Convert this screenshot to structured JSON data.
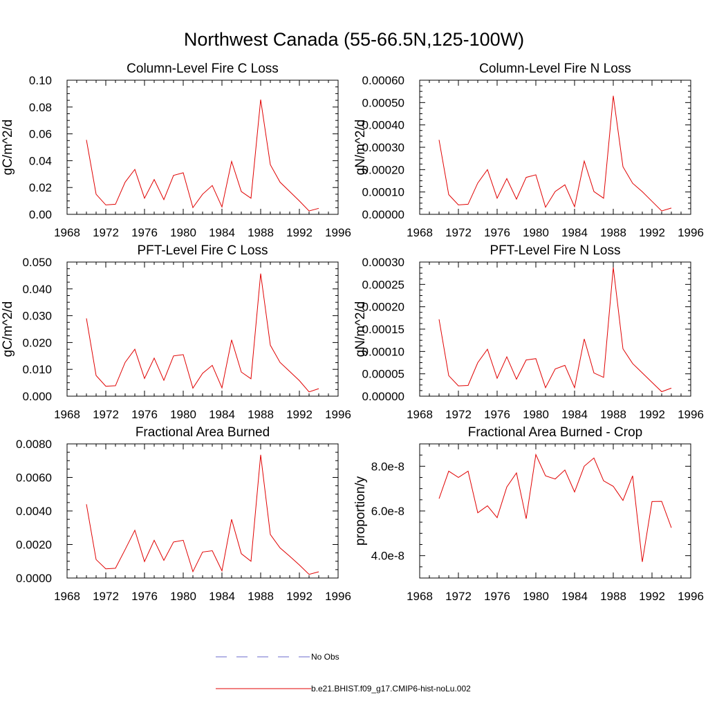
{
  "figure": {
    "title": "Northwest Canada (55-66.5N,125-100W)",
    "legend": [
      {
        "label": "No Obs",
        "color": "#6a6acd",
        "style": "dashed"
      },
      {
        "label": "b.e21.BHIST.f09_g17.CMIP6-hist-noLu.002",
        "color": "#e00000",
        "style": "solid"
      }
    ]
  },
  "chart_data": [
    {
      "type": "line",
      "title": "Column-Level Fire C Loss",
      "ylabel": "gC/m^2/d",
      "xlim": [
        1968,
        1996
      ],
      "ylim": [
        0,
        0.1
      ],
      "x_ticks": [
        "1968",
        "1972",
        "1976",
        "1980",
        "1984",
        "1988",
        "1992",
        "1996"
      ],
      "y_ticks": [
        "0.00",
        "0.02",
        "0.04",
        "0.06",
        "0.08",
        "0.10"
      ],
      "y_tick_values": [
        0,
        0.02,
        0.04,
        0.06,
        0.08,
        0.1
      ],
      "series": [
        {
          "color": "#e00000",
          "x": [
            1970,
            1971,
            1972,
            1973,
            1974,
            1975,
            1976,
            1977,
            1978,
            1979,
            1980,
            1981,
            1982,
            1983,
            1984,
            1985,
            1986,
            1987,
            1988,
            1989,
            1990,
            1991,
            1992,
            1993,
            1994
          ],
          "values": [
            0.0555,
            0.015,
            0.007,
            0.0075,
            0.024,
            0.0335,
            0.012,
            0.026,
            0.011,
            0.029,
            0.031,
            0.005,
            0.015,
            0.0215,
            0.0055,
            0.0395,
            0.017,
            0.012,
            0.0855,
            0.037,
            0.024,
            0.017,
            0.01,
            0.0025,
            0.0045
          ]
        }
      ]
    },
    {
      "type": "line",
      "title": "Column-Level Fire N Loss",
      "ylabel": "gN/m^2/d",
      "xlim": [
        1968,
        1996
      ],
      "ylim": [
        0,
        0.0006
      ],
      "x_ticks": [
        "1968",
        "1972",
        "1976",
        "1980",
        "1984",
        "1988",
        "1992",
        "1996"
      ],
      "y_ticks": [
        "0.00000",
        "0.00010",
        "0.00020",
        "0.00030",
        "0.00040",
        "0.00050",
        "0.00060"
      ],
      "y_tick_values": [
        0,
        0.0001,
        0.0002,
        0.0003,
        0.0004,
        0.0005,
        0.0006
      ],
      "series": [
        {
          "color": "#e00000",
          "x": [
            1970,
            1971,
            1972,
            1973,
            1974,
            1975,
            1976,
            1977,
            1978,
            1979,
            1980,
            1981,
            1982,
            1983,
            1984,
            1985,
            1986,
            1987,
            1988,
            1989,
            1990,
            1991,
            1992,
            1993,
            1994
          ],
          "values": [
            0.000333,
            8.8e-05,
            4.2e-05,
            4.5e-05,
            0.00014,
            0.0002,
            7.2e-05,
            0.00016,
            6.8e-05,
            0.000165,
            0.000177,
            3.2e-05,
            0.000102,
            0.000132,
            3.4e-05,
            0.000238,
            0.000102,
            7.2e-05,
            0.00053,
            0.000213,
            0.000139,
            0.000101,
            5.8e-05,
            1.5e-05,
            2.8e-05
          ]
        }
      ]
    },
    {
      "type": "line",
      "title": "PFT-Level Fire C Loss",
      "ylabel": "gC/m^2/d",
      "xlim": [
        1968,
        1996
      ],
      "ylim": [
        0,
        0.05
      ],
      "x_ticks": [
        "1968",
        "1972",
        "1976",
        "1980",
        "1984",
        "1988",
        "1992",
        "1996"
      ],
      "y_ticks": [
        "0.000",
        "0.010",
        "0.020",
        "0.030",
        "0.040",
        "0.050"
      ],
      "y_tick_values": [
        0,
        0.01,
        0.02,
        0.03,
        0.04,
        0.05
      ],
      "series": [
        {
          "color": "#e00000",
          "x": [
            1970,
            1971,
            1972,
            1973,
            1974,
            1975,
            1976,
            1977,
            1978,
            1979,
            1980,
            1981,
            1982,
            1983,
            1984,
            1985,
            1986,
            1987,
            1988,
            1989,
            1990,
            1991,
            1992,
            1993,
            1994
          ],
          "values": [
            0.029,
            0.0077,
            0.0037,
            0.0039,
            0.0126,
            0.0175,
            0.0066,
            0.0142,
            0.0059,
            0.015,
            0.0155,
            0.003,
            0.0085,
            0.0115,
            0.0031,
            0.021,
            0.009,
            0.0065,
            0.0457,
            0.019,
            0.0126,
            0.0092,
            0.0058,
            0.0016,
            0.0028
          ]
        }
      ]
    },
    {
      "type": "line",
      "title": "PFT-Level Fire N Loss",
      "ylabel": "gN/m^2/d",
      "xlim": [
        1968,
        1996
      ],
      "ylim": [
        0,
        0.0003
      ],
      "x_ticks": [
        "1968",
        "1972",
        "1976",
        "1980",
        "1984",
        "1988",
        "1992",
        "1996"
      ],
      "y_ticks": [
        "0.00000",
        "0.00005",
        "0.00010",
        "0.00015",
        "0.00020",
        "0.00025",
        "0.00030"
      ],
      "y_tick_values": [
        0,
        5e-05,
        0.0001,
        0.00015,
        0.0002,
        0.00025,
        0.0003
      ],
      "series": [
        {
          "color": "#e00000",
          "x": [
            1970,
            1971,
            1972,
            1973,
            1974,
            1975,
            1976,
            1977,
            1978,
            1979,
            1980,
            1981,
            1982,
            1983,
            1984,
            1985,
            1986,
            1987,
            1988,
            1989,
            1990,
            1991,
            1992,
            1993,
            1994
          ],
          "values": [
            0.000172,
            4.6e-05,
            2.3e-05,
            2.4e-05,
            7.5e-05,
            0.000105,
            4e-05,
            8.8e-05,
            3.8e-05,
            8.1e-05,
            8.4e-05,
            1.9e-05,
            6.1e-05,
            6.9e-05,
            1.9e-05,
            0.000128,
            5.2e-05,
            4.2e-05,
            0.000288,
            0.000106,
            7.3e-05,
            5.2e-05,
            3.1e-05,
            1e-05,
            1.8e-05
          ]
        }
      ]
    },
    {
      "type": "line",
      "title": "Fractional Area Burned",
      "ylabel": "",
      "xlim": [
        1968,
        1996
      ],
      "ylim": [
        0,
        0.008
      ],
      "x_ticks": [
        "1968",
        "1972",
        "1976",
        "1980",
        "1984",
        "1988",
        "1992",
        "1996"
      ],
      "y_ticks": [
        "0.0000",
        "0.0020",
        "0.0040",
        "0.0060",
        "0.0080"
      ],
      "y_tick_values": [
        0,
        0.002,
        0.004,
        0.006,
        0.008
      ],
      "series": [
        {
          "color": "#e00000",
          "x": [
            1970,
            1971,
            1972,
            1973,
            1974,
            1975,
            1976,
            1977,
            1978,
            1979,
            1980,
            1981,
            1982,
            1983,
            1984,
            1985,
            1986,
            1987,
            1988,
            1989,
            1990,
            1991,
            1992,
            1993,
            1994
          ],
          "values": [
            0.0044,
            0.0011,
            0.00055,
            0.00058,
            0.0017,
            0.00285,
            0.00098,
            0.00225,
            0.00105,
            0.00215,
            0.00225,
            0.00038,
            0.00155,
            0.00163,
            0.00043,
            0.0035,
            0.00145,
            0.001,
            0.00735,
            0.0026,
            0.0018,
            0.0013,
            0.00078,
            0.00022,
            0.00037
          ]
        }
      ]
    },
    {
      "type": "line",
      "title": "Fractional Area Burned - Crop",
      "ylabel": "proportion/y",
      "xlim": [
        1968,
        1996
      ],
      "ylim": [
        3e-08,
        9e-08
      ],
      "x_ticks": [
        "1968",
        "1972",
        "1976",
        "1980",
        "1984",
        "1988",
        "1992",
        "1996"
      ],
      "y_ticks": [
        "4.0e-8",
        "6.0e-8",
        "8.0e-8"
      ],
      "y_tick_values": [
        4e-08,
        6e-08,
        8e-08
      ],
      "series": [
        {
          "color": "#e00000",
          "x": [
            1970,
            1971,
            1972,
            1973,
            1974,
            1975,
            1976,
            1977,
            1978,
            1979,
            1980,
            1981,
            1982,
            1983,
            1984,
            1985,
            1986,
            1987,
            1988,
            1989,
            1990,
            1991,
            1992,
            1993,
            1994
          ],
          "values": [
            6.55e-08,
            7.78e-08,
            7.5e-08,
            7.78e-08,
            5.92e-08,
            6.23e-08,
            5.7e-08,
            7.07e-08,
            7.7e-08,
            5.65e-08,
            8.52e-08,
            7.57e-08,
            7.43e-08,
            7.83e-08,
            6.85e-08,
            8e-08,
            8.37e-08,
            7.35e-08,
            7.1e-08,
            6.47e-08,
            7.57e-08,
            3.72e-08,
            6.42e-08,
            6.43e-08,
            5.25e-08
          ]
        }
      ]
    }
  ]
}
